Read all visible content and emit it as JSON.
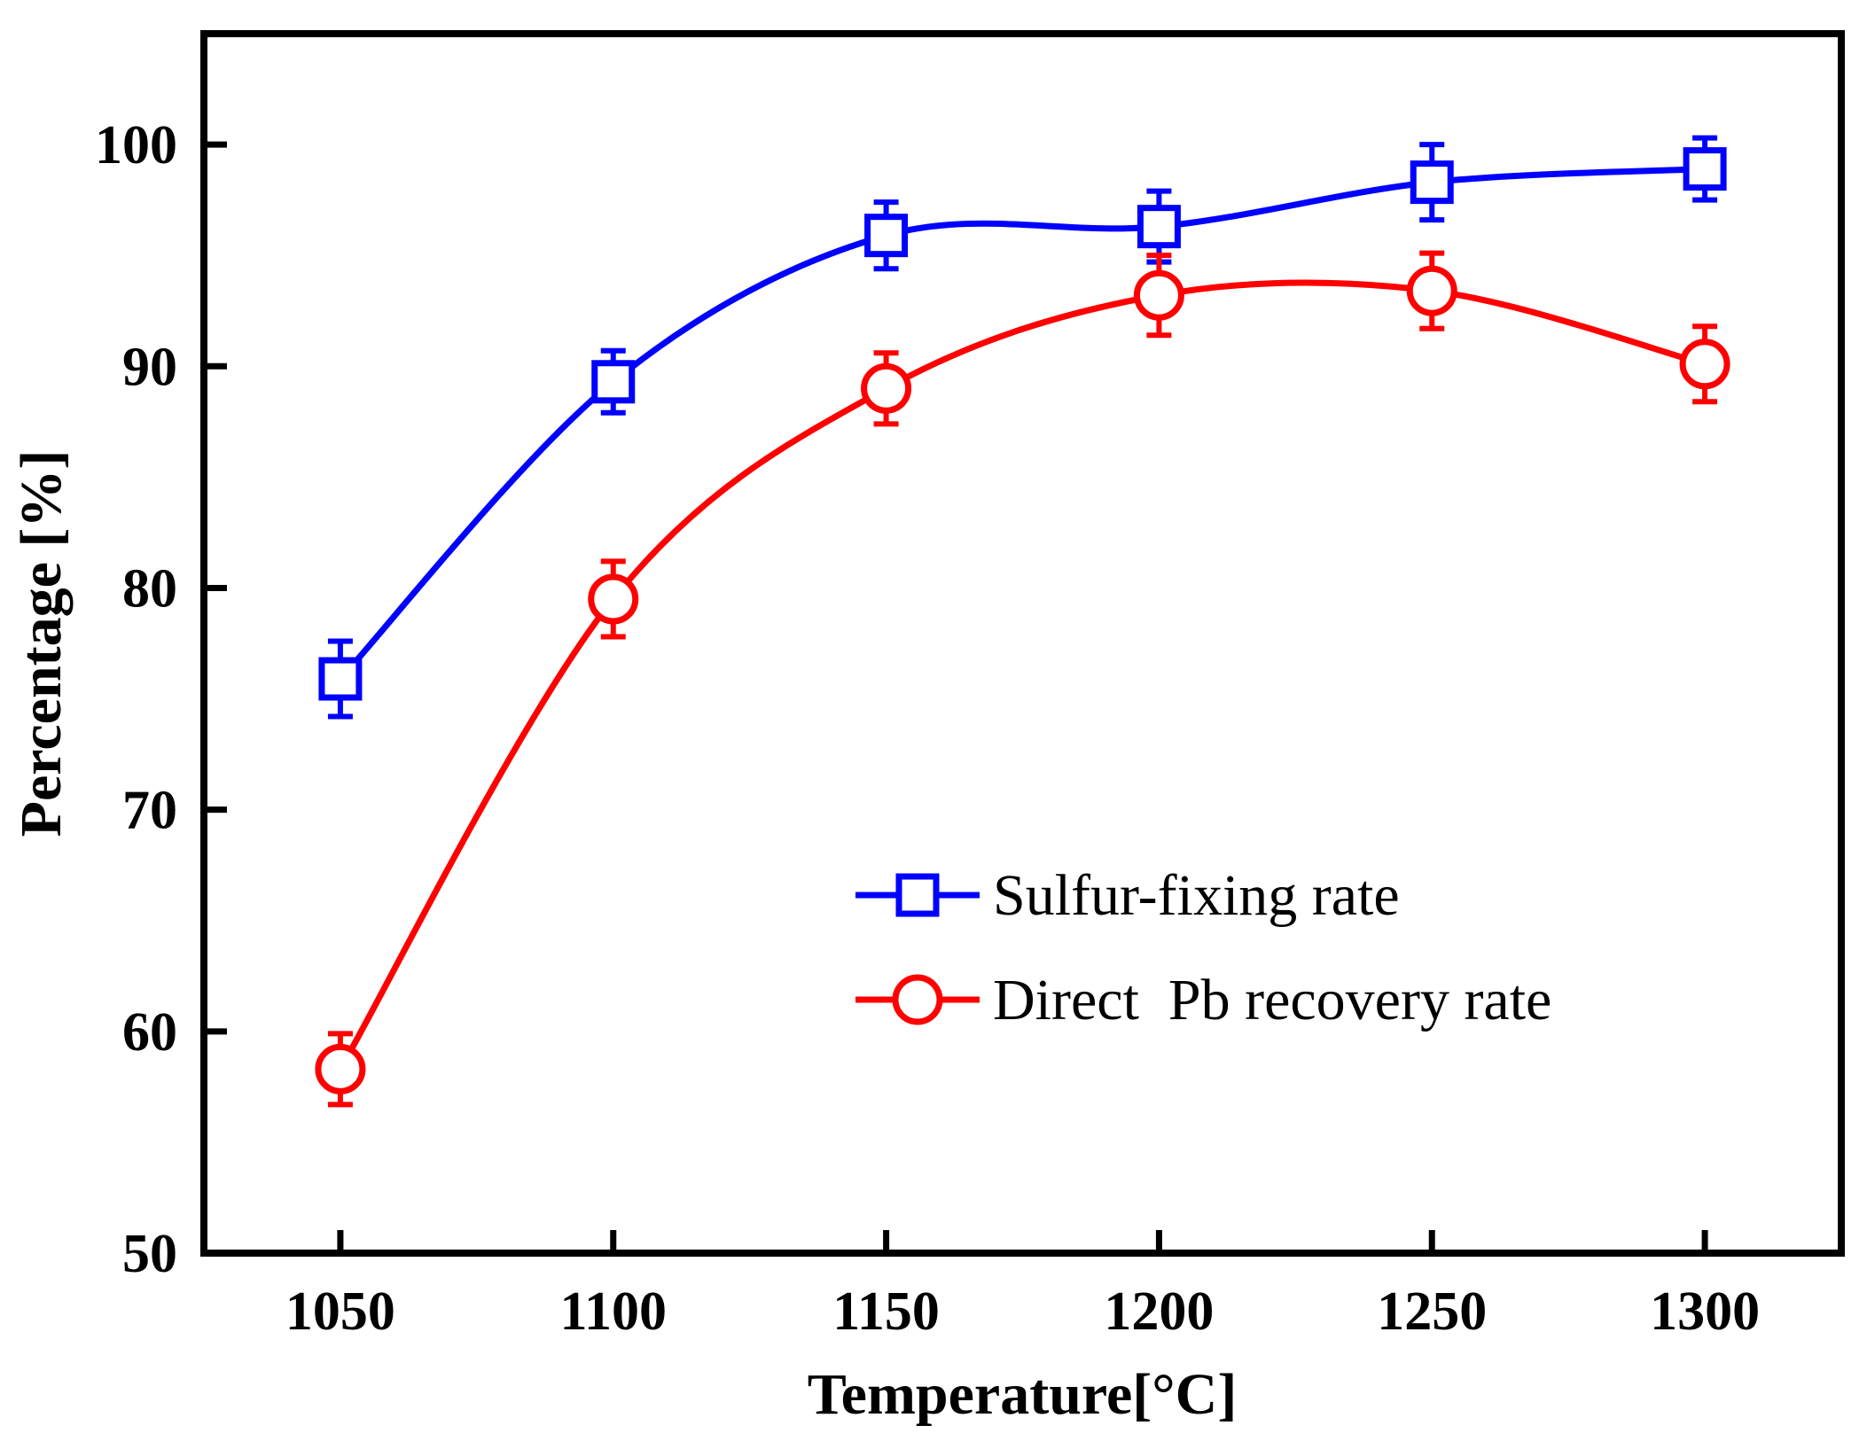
{
  "chart_data": {
    "type": "line",
    "title": "",
    "xlabel": "Temperature[°C]",
    "ylabel": "Percentage [%]",
    "x": [
      1050,
      1100,
      1150,
      1200,
      1250,
      1300
    ],
    "x_tick_labels": [
      "1050",
      "1100",
      "1150",
      "1200",
      "1250",
      "1300"
    ],
    "y_ticks": [
      50,
      60,
      70,
      80,
      90,
      100
    ],
    "y_tick_labels": [
      "50",
      "60",
      "70",
      "80",
      "90",
      "100"
    ],
    "xlim": [
      1025,
      1325
    ],
    "ylim": [
      50,
      105
    ],
    "grid": false,
    "legend_position": "lower-right",
    "series": [
      {
        "name": "Sulfur-fixing rate",
        "marker": "square",
        "color": "#0000ff",
        "values": [
          75.9,
          89.3,
          95.9,
          96.3,
          98.3,
          98.9
        ],
        "error": [
          1.7,
          1.4,
          1.5,
          1.6,
          1.7,
          1.4
        ]
      },
      {
        "name": "Direct  Pb recovery rate",
        "marker": "circle",
        "color": "#ff0000",
        "values": [
          58.3,
          79.5,
          89.0,
          93.2,
          93.4,
          90.1
        ],
        "error": [
          1.6,
          1.7,
          1.6,
          1.8,
          1.7,
          1.7
        ]
      }
    ]
  }
}
